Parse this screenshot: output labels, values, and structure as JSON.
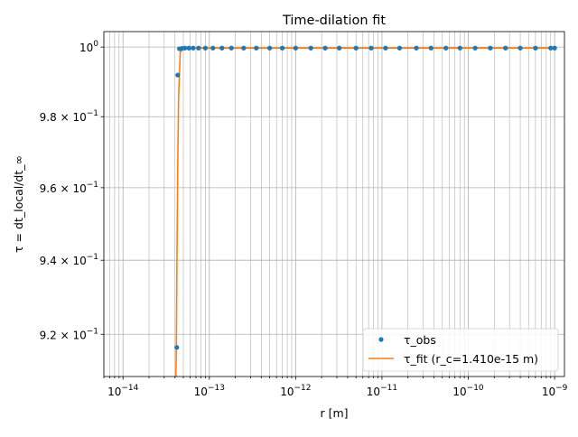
{
  "chart_data": {
    "type": "scatter",
    "title": "Time-dilation fit",
    "xlabel": "r [m]",
    "ylabel": "τ = dt_local/dt_∞",
    "xscale": "log",
    "yscale": "log",
    "xlim": [
      6e-15,
      1.3e-09
    ],
    "ylim": [
      0.9088,
      1.0045
    ],
    "grid": "major and minor, both axes",
    "legend_position": "lower right",
    "x_ticks": [
      {
        "value": 1e-14,
        "label": "10−14",
        "base": "10",
        "exp": "−14"
      },
      {
        "value": 1e-13,
        "label": "10−13",
        "base": "10",
        "exp": "−13"
      },
      {
        "value": 1e-12,
        "label": "10−12",
        "base": "10",
        "exp": "−12"
      },
      {
        "value": 1e-11,
        "label": "10−11",
        "base": "10",
        "exp": "−11"
      },
      {
        "value": 1e-10,
        "label": "10−10",
        "base": "10",
        "exp": "−10"
      },
      {
        "value": 1e-09,
        "label": "10−9",
        "base": "10",
        "exp": "−9"
      }
    ],
    "y_ticks": [
      {
        "value": 1.0,
        "label": "10⁰",
        "mantissa": "",
        "base": "10",
        "exp": "0"
      },
      {
        "value": 0.98,
        "label": "9.8 × 10−1",
        "mantissa": "9.8 × ",
        "base": "10",
        "exp": "−1"
      },
      {
        "value": 0.96,
        "label": "9.6 × 10−1",
        "mantissa": "9.6 × ",
        "base": "10",
        "exp": "−1"
      },
      {
        "value": 0.94,
        "label": "9.4 × 10−1",
        "mantissa": "9.4 × ",
        "base": "10",
        "exp": "−1"
      },
      {
        "value": 0.92,
        "label": "9.2 × 10−1",
        "mantissa": "9.2 × ",
        "base": "10",
        "exp": "−1"
      }
    ],
    "series": [
      {
        "name": "τ_obs",
        "kind": "markers",
        "color": "#1f77b4",
        "x": [
          4.2e-14,
          4.3e-14,
          4.5e-14,
          4.8e-14,
          5.2e-14,
          5.8e-14,
          6.5e-14,
          7.5e-14,
          9e-14,
          1.1e-13,
          1.4e-13,
          1.8e-13,
          2.5e-13,
          3.5e-13,
          5e-13,
          7e-13,
          1e-12,
          1.5e-12,
          2.2e-12,
          3.2e-12,
          5e-12,
          7.5e-12,
          1.1e-11,
          1.6e-11,
          2.5e-11,
          3.7e-11,
          5.5e-11,
          8e-11,
          1.2e-10,
          1.8e-10,
          2.7e-10,
          4e-10,
          6e-10,
          9e-10,
          1e-09
        ],
        "y": [
          0.9165,
          0.9919,
          0.9995,
          0.9996,
          0.9997,
          0.9997,
          0.9997,
          0.9997,
          0.9997,
          0.9997,
          0.9997,
          0.9997,
          0.9997,
          0.9997,
          0.9997,
          0.9997,
          0.9997,
          0.9997,
          0.9997,
          0.9997,
          0.9997,
          0.9997,
          0.9997,
          0.9997,
          0.9997,
          0.9997,
          0.9997,
          0.9997,
          0.9997,
          0.9997,
          0.9997,
          0.9997,
          0.9997,
          0.9997,
          0.9997
        ]
      },
      {
        "name": "τ_fit (r_c=1.410e-15 m)",
        "kind": "line",
        "color": "#ff7f0e",
        "x": [
          4.1e-14,
          4.15e-14,
          4.2e-14,
          4.3e-14,
          4.4e-14,
          4.6e-14,
          5e-14,
          6e-14,
          1e-13,
          1e-12,
          1e-11,
          1e-10,
          1e-09
        ],
        "y": [
          0.9088,
          0.9165,
          0.935,
          0.965,
          0.985,
          0.9985,
          0.9996,
          0.9997,
          0.9997,
          0.9997,
          0.9997,
          0.9997,
          0.9997
        ]
      }
    ]
  }
}
